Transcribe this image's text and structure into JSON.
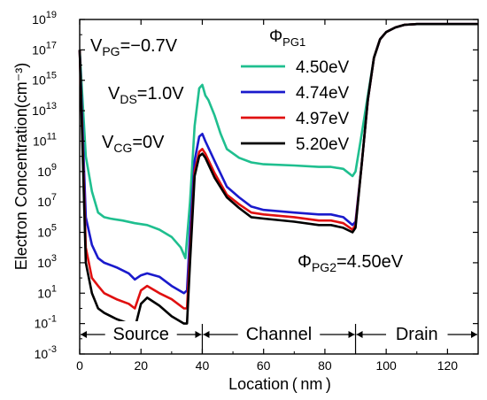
{
  "chart_data": {
    "type": "line",
    "xlabel": "Location ( nm )",
    "ylabel": "Electron Concentration(cm⁻³)",
    "xlim": [
      0,
      130
    ],
    "ylim_log10": [
      -3,
      19
    ],
    "yscale": "log",
    "grid": false,
    "x_ticks": [
      0,
      20,
      40,
      60,
      80,
      100,
      120
    ],
    "y_tick_exponents": [
      -3,
      -1,
      1,
      3,
      5,
      7,
      9,
      11,
      13,
      15,
      17,
      19
    ],
    "y_tick_base": "10",
    "legend": {
      "title_main": "Φ",
      "title_sub": "PG1",
      "placement": "top-right"
    },
    "series": [
      {
        "name": "4.50eV",
        "color": "#1fbf8f",
        "points": [
          [
            0,
            1e+17
          ],
          [
            2,
            10000000000.0
          ],
          [
            4,
            50000000.0
          ],
          [
            6,
            2000000.0
          ],
          [
            8,
            1000000.0
          ],
          [
            10,
            800000.0
          ],
          [
            14,
            600000.0
          ],
          [
            18,
            400000.0
          ],
          [
            22,
            300000.0
          ],
          [
            26,
            150000.0
          ],
          [
            30,
            50000.0
          ],
          [
            33,
            10000.0
          ],
          [
            34.5,
            2000.0
          ],
          [
            36,
            10000000.0
          ],
          [
            37.5,
            1000000000000.0
          ],
          [
            39,
            300000000000000.0
          ],
          [
            40,
            500000000000000.0
          ],
          [
            41,
            100000000000000.0
          ],
          [
            42,
            50000000000000.0
          ],
          [
            44,
            5000000000000.0
          ],
          [
            46,
            300000000000.0
          ],
          [
            48,
            30000000000.0
          ],
          [
            52,
            8000000000.0
          ],
          [
            56,
            4000000000.0
          ],
          [
            60,
            3000000000.0
          ],
          [
            70,
            2500000000.0
          ],
          [
            78,
            2000000000.0
          ],
          [
            82,
            2000000000.0
          ],
          [
            86,
            1500000000.0
          ],
          [
            89,
            500000000.0
          ],
          [
            90,
            1000000000.0
          ],
          [
            92,
            300000000000.0
          ],
          [
            94,
            100000000000000.0
          ],
          [
            96,
            3e+16
          ],
          [
            98,
            5e+17
          ],
          [
            100,
            1.5e+18
          ],
          [
            103,
            3e+18
          ],
          [
            106,
            4.5e+18
          ],
          [
            110,
            5e+18
          ],
          [
            120,
            5e+18
          ],
          [
            130,
            5e+18
          ]
        ]
      },
      {
        "name": "4.74eV",
        "color": "#1a1acc",
        "points": [
          [
            0,
            1e+17
          ],
          [
            2,
            1000000.0
          ],
          [
            4,
            15000.0
          ],
          [
            6,
            2000.0
          ],
          [
            8,
            1000.0
          ],
          [
            12,
            500.0
          ],
          [
            16,
            200.0
          ],
          [
            18,
            80.0
          ],
          [
            20,
            150.0
          ],
          [
            22,
            200.0
          ],
          [
            26,
            120.0
          ],
          [
            30,
            30.0
          ],
          [
            34,
            10.0
          ],
          [
            35,
            15.0
          ],
          [
            36,
            100000.0
          ],
          [
            37.5,
            5000000000.0
          ],
          [
            39,
            200000000000.0
          ],
          [
            40,
            300000000000.0
          ],
          [
            41,
            100000000000.0
          ],
          [
            44,
            5000000000.0
          ],
          [
            48,
            100000000.0
          ],
          [
            52,
            20000000.0
          ],
          [
            56,
            5000000.0
          ],
          [
            60,
            3000000.0
          ],
          [
            70,
            2000000.0
          ],
          [
            78,
            1500000.0
          ],
          [
            82,
            1500000.0
          ],
          [
            86,
            1000000.0
          ],
          [
            89,
            300000.0
          ],
          [
            90,
            500000.0
          ],
          [
            92,
            3000000000.0
          ],
          [
            94,
            50000000000000.0
          ],
          [
            96,
            3e+16
          ],
          [
            98,
            5e+17
          ],
          [
            100,
            1.5e+18
          ],
          [
            103,
            3e+18
          ],
          [
            106,
            4.5e+18
          ],
          [
            110,
            5e+18
          ],
          [
            120,
            5e+18
          ],
          [
            130,
            5e+18
          ]
        ]
      },
      {
        "name": "4.97eV",
        "color": "#e01010",
        "points": [
          [
            0,
            1e+17
          ],
          [
            2,
            10000.0
          ],
          [
            4,
            100.0
          ],
          [
            6,
            30.0
          ],
          [
            8,
            10.0
          ],
          [
            12,
            4.0
          ],
          [
            16,
            2.0
          ],
          [
            18,
            1.0
          ],
          [
            20,
            15.0
          ],
          [
            22,
            30.0
          ],
          [
            26,
            10.0
          ],
          [
            30,
            4.0
          ],
          [
            34,
            1.0
          ],
          [
            35,
            1.0
          ],
          [
            36,
            5000.0
          ],
          [
            37.5,
            1000000000.0
          ],
          [
            39,
            20000000000.0
          ],
          [
            40,
            30000000000.0
          ],
          [
            41,
            15000000000.0
          ],
          [
            44,
            800000000.0
          ],
          [
            48,
            30000000.0
          ],
          [
            52,
            7000000.0
          ],
          [
            56,
            2000000.0
          ],
          [
            60,
            1500000.0
          ],
          [
            70,
            1000000.0
          ],
          [
            78,
            600000.0
          ],
          [
            82,
            600000.0
          ],
          [
            86,
            400000.0
          ],
          [
            89,
            150000.0
          ],
          [
            90,
            300000.0
          ],
          [
            92,
            3000000000.0
          ],
          [
            94,
            50000000000000.0
          ],
          [
            96,
            3e+16
          ],
          [
            98,
            5e+17
          ],
          [
            100,
            1.5e+18
          ],
          [
            103,
            3e+18
          ],
          [
            106,
            4.5e+18
          ],
          [
            110,
            5e+18
          ],
          [
            120,
            5e+18
          ],
          [
            130,
            5e+18
          ]
        ]
      },
      {
        "name": "5.20eV",
        "color": "#000000",
        "points": [
          [
            0,
            1e+17
          ],
          [
            2,
            1000.0
          ],
          [
            4,
            10.0
          ],
          [
            6,
            1.0
          ],
          [
            8,
            0.5
          ],
          [
            12,
            0.2
          ],
          [
            16,
            0.1
          ],
          [
            18,
            0.05
          ],
          [
            20,
            2.0
          ],
          [
            22,
            5.0
          ],
          [
            26,
            1.5
          ],
          [
            30,
            0.3
          ],
          [
            34,
            0.1
          ],
          [
            35,
            0.1
          ],
          [
            36,
            1000.0
          ],
          [
            37.5,
            500000000.0
          ],
          [
            39,
            10000000000.0
          ],
          [
            40,
            15000000000.0
          ],
          [
            41,
            8000000000.0
          ],
          [
            44,
            400000000.0
          ],
          [
            48,
            20000000.0
          ],
          [
            52,
            4000000.0
          ],
          [
            56,
            1000000.0
          ],
          [
            60,
            800000.0
          ],
          [
            70,
            500000.0
          ],
          [
            78,
            300000.0
          ],
          [
            82,
            300000.0
          ],
          [
            86,
            200000.0
          ],
          [
            89,
            100000.0
          ],
          [
            90,
            200000.0
          ],
          [
            92,
            3000000000.0
          ],
          [
            94,
            50000000000000.0
          ],
          [
            96,
            3e+16
          ],
          [
            98,
            5e+17
          ],
          [
            100,
            1.5e+18
          ],
          [
            103,
            3e+18
          ],
          [
            106,
            4.5e+18
          ],
          [
            110,
            5e+18
          ],
          [
            120,
            5e+18
          ],
          [
            130,
            5e+18
          ]
        ]
      }
    ],
    "annotations": {
      "vpg": {
        "main": "V",
        "sub": "PG",
        "tail": "=−0.7V"
      },
      "vds": {
        "main": "V",
        "sub": "DS",
        "tail": "=1.0V"
      },
      "vcg": {
        "main": "V",
        "sub": "CG",
        "tail": "=0V"
      },
      "phi_pg2": {
        "main": "Φ",
        "sub": "PG2",
        "tail": "=4.50eV"
      }
    },
    "regions": [
      {
        "label": "Source",
        "x_from": 0,
        "x_to": 40
      },
      {
        "label": "Channel",
        "x_from": 40,
        "x_to": 90
      },
      {
        "label": "Drain",
        "x_from": 90,
        "x_to": 130
      }
    ]
  }
}
